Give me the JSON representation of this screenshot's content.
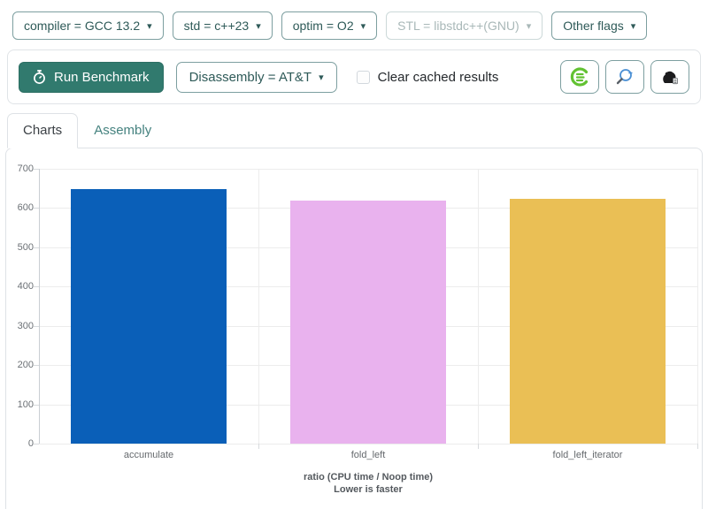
{
  "toolbar": {
    "dropdowns": [
      {
        "label": "compiler = GCC 13.2",
        "disabled": false
      },
      {
        "label": "std = c++23",
        "disabled": false
      },
      {
        "label": "optim = O2",
        "disabled": false
      },
      {
        "label": "STL = libstdc++(GNU)",
        "disabled": true
      },
      {
        "label": "Other flags",
        "disabled": false
      }
    ]
  },
  "run_bar": {
    "run_label": "Run Benchmark",
    "disassembly_label": "Disassembly = AT&T",
    "clear_cache_label": "Clear cached results",
    "clear_cache_checked": false,
    "icon_buttons": [
      "compiler-explorer",
      "cpp-insights-magnifier",
      "build-bench-gorilla"
    ]
  },
  "tabs": [
    {
      "label": "Charts",
      "active": true
    },
    {
      "label": "Assembly",
      "active": false
    }
  ],
  "chart_data": {
    "type": "bar",
    "categories": [
      "accumulate",
      "fold_left",
      "fold_left_iterator"
    ],
    "values": [
      648,
      620,
      623
    ],
    "bar_colors": [
      "#0a5fb8",
      "#e9b2ee",
      "#eabf55"
    ],
    "title": "",
    "xlabel": "ratio (CPU time / Noop time)",
    "xlabel_line2": "Lower is faster",
    "ylabel": "",
    "ylim": [
      0,
      700
    ],
    "ytick_step": 100,
    "grid": true,
    "legend": "none"
  },
  "colors": {
    "accent_teal": "#317a6e",
    "button_border": "#7d9fa0",
    "button_text": "#2e5a58",
    "inactive_tab_text": "#45827f",
    "compiler_explorer_green": "#62c232",
    "magnifier_blue": "#4a8fd4",
    "gorilla_dark": "#1b1b1d"
  }
}
